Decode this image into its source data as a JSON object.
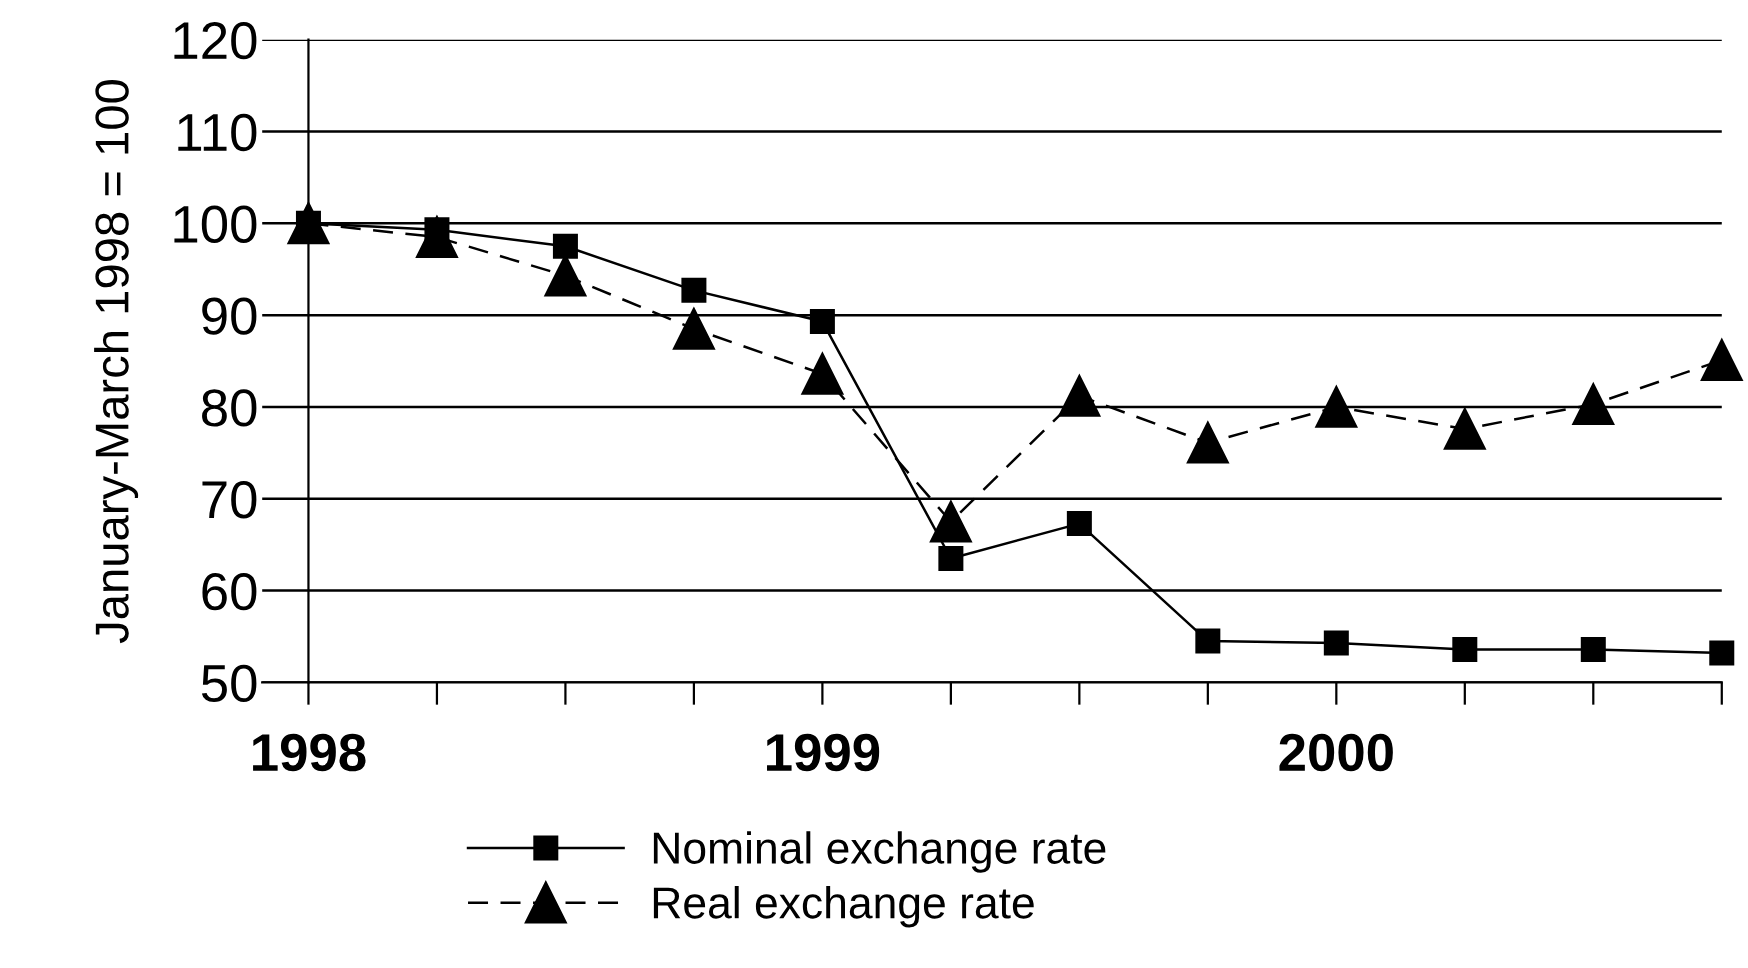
{
  "chart_data": {
    "type": "line",
    "ylabel": "January-March 1998 = 100",
    "x": [
      1998,
      1998.25,
      1998.5,
      1998.75,
      1999,
      1999.25,
      1999.5,
      1999.75,
      2000,
      2000.25,
      2000.5,
      2000.75
    ],
    "series": [
      {
        "name": "Nominal exchange rate",
        "color": "#000000",
        "marker": "square",
        "line_style": "solid",
        "values": [
          100,
          99.3,
          97.5,
          92.7,
          89.3,
          63.5,
          67.3,
          54.5,
          54.3,
          53.6,
          53.6,
          53.2
        ]
      },
      {
        "name": "Real exchange rate",
        "color": "#000000",
        "marker": "triangle",
        "line_style": "dashed",
        "values": [
          100,
          98.5,
          94.3,
          88.5,
          83.6,
          67.5,
          81.2,
          76.1,
          80,
          77.6,
          80.3,
          85.1
        ]
      }
    ],
    "xlim": [
      1997.91,
      2000.75
    ],
    "ylim": [
      50,
      120
    ],
    "xticks": [
      1998,
      {
        "value": 1998.25,
        "label": null
      },
      {
        "value": 1998.5,
        "label": null
      },
      {
        "value": 1998.75,
        "label": null
      },
      1999,
      {
        "value": 1999.25,
        "label": null
      },
      {
        "value": 1999.5,
        "label": null
      },
      {
        "value": 1999.75,
        "label": null
      },
      2000,
      {
        "value": 2000.25,
        "label": null
      },
      {
        "value": 2000.5,
        "label": null
      },
      {
        "value": 2000.75,
        "label": null
      }
    ],
    "yticks": [
      50,
      60,
      70,
      80,
      90,
      100,
      110,
      120
    ],
    "grid": "y",
    "legend": "bottom"
  }
}
